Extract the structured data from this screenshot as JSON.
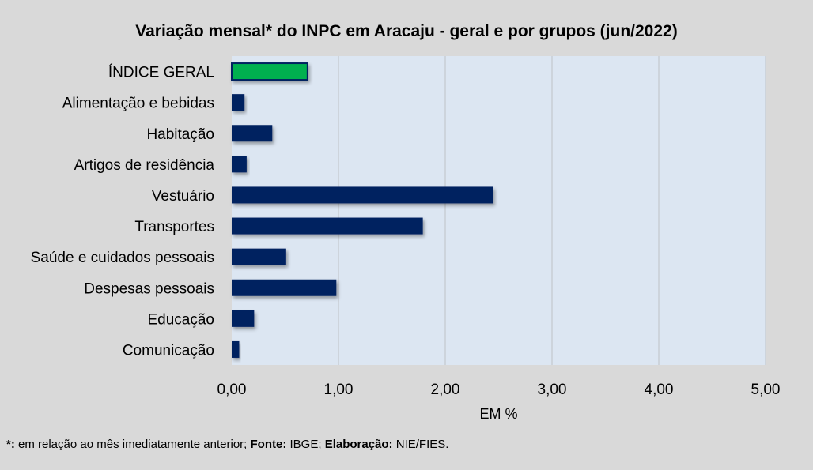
{
  "chart_data": {
    "type": "bar",
    "orientation": "horizontal",
    "title": "Variação  mensal*  do INPC em Aracaju  - geral e por grupos  (jun/2022)",
    "xlabel": "EM %",
    "ylabel": "",
    "xlim": [
      0,
      5
    ],
    "xticks": [
      "0,00",
      "1,00",
      "2,00",
      "3,00",
      "4,00",
      "5,00"
    ],
    "grid": true,
    "categories": [
      "ÍNDICE GERAL",
      "Alimentação e bebidas",
      "Habitação",
      "Artigos de residência",
      "Vestuário",
      "Transportes",
      "Saúde e cuidados pessoais",
      "Despesas pessoais",
      "Educação",
      "Comunicação"
    ],
    "values": [
      0.71,
      0.12,
      0.38,
      0.14,
      2.45,
      1.79,
      0.51,
      0.98,
      0.21,
      0.07
    ],
    "colors": {
      "highlight": "#00b050",
      "default": "#002060",
      "plot_bg": "#dce6f2",
      "grid": "#c8cdd4"
    }
  },
  "footnote": {
    "star": "*:",
    "text1": " em relação ao mês imediatamente  anterior; ",
    "source_label": "Fonte:",
    "source": " IBGE; ",
    "elab_label": "Elaboração:",
    "elab": " NIE/FIES."
  }
}
